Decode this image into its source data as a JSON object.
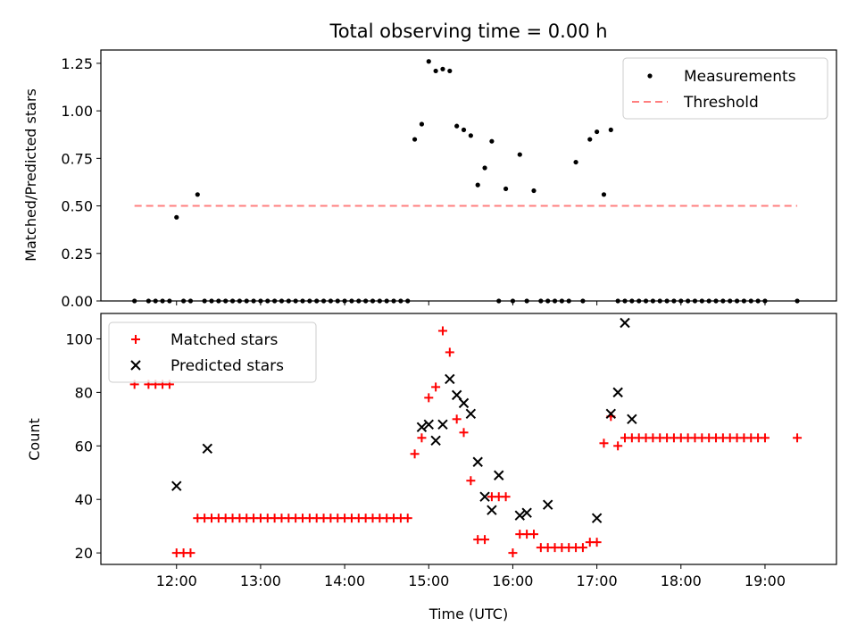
{
  "title": "Total observing time = 0.00 h",
  "colors": {
    "measure": "#000000",
    "threshold": "#ff7f7f",
    "matched": "#ff0000",
    "predicted": "#000000"
  },
  "chart_data": [
    {
      "type": "scatter",
      "ylabel": "Matched/Predicted stars",
      "ylim": [
        0,
        1.32
      ],
      "xlim": [
        "11:06",
        "19:51"
      ],
      "yticks": [
        "0.00",
        "0.25",
        "0.50",
        "0.75",
        "1.00",
        "1.25"
      ],
      "ytick_values": [
        0,
        0.25,
        0.5,
        0.75,
        1.0,
        1.25
      ],
      "legend": {
        "placement": "top-right",
        "entries": [
          "Measurements",
          "Threshold"
        ]
      },
      "series": [
        {
          "name": "Measurements",
          "marker": "dot",
          "x": [
            "11:30",
            "11:40",
            "11:45",
            "11:50",
            "11:55",
            "12:00",
            "12:05",
            "12:10",
            "12:15",
            "12:20",
            "12:25",
            "12:30",
            "12:35",
            "12:40",
            "12:45",
            "12:50",
            "12:55",
            "13:00",
            "13:05",
            "13:10",
            "13:15",
            "13:20",
            "13:25",
            "13:30",
            "13:35",
            "13:40",
            "13:45",
            "13:50",
            "13:55",
            "14:00",
            "14:05",
            "14:10",
            "14:15",
            "14:20",
            "14:25",
            "14:30",
            "14:35",
            "14:40",
            "14:45",
            "14:50",
            "14:55",
            "15:00",
            "15:05",
            "15:10",
            "15:15",
            "15:20",
            "15:25",
            "15:30",
            "15:35",
            "15:40",
            "15:45",
            "15:50",
            "15:55",
            "16:00",
            "16:05",
            "16:10",
            "16:15",
            "16:20",
            "16:25",
            "16:30",
            "16:35",
            "16:40",
            "16:45",
            "16:50",
            "16:55",
            "17:00",
            "17:05",
            "17:10",
            "17:15",
            "17:20",
            "17:25",
            "17:30",
            "17:35",
            "17:40",
            "17:45",
            "17:50",
            "17:55",
            "18:00",
            "18:05",
            "18:10",
            "18:15",
            "18:20",
            "18:25",
            "18:30",
            "18:35",
            "18:40",
            "18:45",
            "18:50",
            "18:55",
            "19:00",
            "19:23"
          ],
          "y": [
            0,
            0,
            0,
            0,
            0,
            0.44,
            0,
            0,
            0.56,
            0,
            0,
            0,
            0,
            0,
            0,
            0,
            0,
            0,
            0,
            0,
            0,
            0,
            0,
            0,
            0,
            0,
            0,
            0,
            0,
            0,
            0,
            0,
            0,
            0,
            0,
            0,
            0,
            0,
            0,
            0.85,
            0.93,
            1.26,
            1.21,
            1.22,
            1.21,
            0.92,
            0.9,
            0.87,
            0.61,
            0.7,
            0.84,
            0,
            0.59,
            0,
            0.77,
            0,
            0.58,
            0,
            0,
            0,
            0,
            0,
            0.73,
            0,
            0.85,
            0.89,
            0.56,
            0.9,
            0,
            0,
            0,
            0,
            0,
            0,
            0,
            0,
            0,
            0,
            0,
            0,
            0,
            0,
            0,
            0,
            0,
            0,
            0,
            0,
            0,
            0,
            0
          ]
        },
        {
          "name": "Threshold",
          "marker": "dashed-line",
          "x": [
            "11:30",
            "19:23"
          ],
          "y": [
            0.5,
            0.5
          ]
        }
      ]
    },
    {
      "type": "scatter",
      "ylabel": "Count",
      "xlabel": "Time (UTC)",
      "ylim": [
        15.7,
        109.5
      ],
      "xlim": [
        "11:06",
        "19:51"
      ],
      "xticks": [
        "12:00",
        "13:00",
        "14:00",
        "15:00",
        "16:00",
        "17:00",
        "18:00",
        "19:00"
      ],
      "yticks": [
        "20",
        "40",
        "60",
        "80",
        "100"
      ],
      "ytick_values": [
        20,
        40,
        60,
        80,
        100
      ],
      "legend": {
        "placement": "top-left",
        "entries": [
          "Matched stars",
          "Predicted stars"
        ]
      },
      "series": [
        {
          "name": "Matched stars",
          "marker": "plus",
          "x": [
            "11:30",
            "11:40",
            "11:45",
            "11:50",
            "11:55",
            "12:00",
            "12:05",
            "12:10",
            "12:15",
            "12:20",
            "12:25",
            "12:30",
            "12:35",
            "12:40",
            "12:45",
            "12:50",
            "12:55",
            "13:00",
            "13:05",
            "13:10",
            "13:15",
            "13:20",
            "13:25",
            "13:30",
            "13:35",
            "13:40",
            "13:45",
            "13:50",
            "13:55",
            "14:00",
            "14:05",
            "14:10",
            "14:15",
            "14:20",
            "14:25",
            "14:30",
            "14:35",
            "14:40",
            "14:45",
            "14:50",
            "14:55",
            "15:00",
            "15:05",
            "15:10",
            "15:15",
            "15:20",
            "15:25",
            "15:30",
            "15:35",
            "15:40",
            "15:45",
            "15:50",
            "15:55",
            "16:00",
            "16:05",
            "16:10",
            "16:15",
            "16:20",
            "16:25",
            "16:30",
            "16:35",
            "16:40",
            "16:45",
            "16:50",
            "16:55",
            "17:00",
            "17:05",
            "17:10",
            "17:15",
            "17:20",
            "17:25",
            "17:30",
            "17:35",
            "17:40",
            "17:45",
            "17:50",
            "17:55",
            "18:00",
            "18:05",
            "18:10",
            "18:15",
            "18:20",
            "18:25",
            "18:30",
            "18:35",
            "18:40",
            "18:45",
            "18:50",
            "18:55",
            "19:00",
            "19:23"
          ],
          "y": [
            83,
            83,
            83,
            83,
            83,
            20,
            20,
            20,
            33,
            33,
            33,
            33,
            33,
            33,
            33,
            33,
            33,
            33,
            33,
            33,
            33,
            33,
            33,
            33,
            33,
            33,
            33,
            33,
            33,
            33,
            33,
            33,
            33,
            33,
            33,
            33,
            33,
            33,
            33,
            57,
            63,
            78,
            82,
            103,
            95,
            70,
            65,
            47,
            25,
            25,
            41,
            41,
            41,
            20,
            27,
            27,
            27,
            22,
            22,
            22,
            22,
            22,
            22,
            22,
            24,
            24,
            61,
            71,
            60,
            63,
            63,
            63,
            63,
            63,
            63,
            63,
            63,
            63,
            63,
            63,
            63,
            63,
            63,
            63,
            63,
            63,
            63,
            63,
            63,
            63,
            63
          ]
        },
        {
          "name": "Predicted stars",
          "marker": "x",
          "x": [
            "12:00",
            "12:22",
            "14:55",
            "15:00",
            "15:05",
            "15:10",
            "15:15",
            "15:20",
            "15:25",
            "15:30",
            "15:35",
            "15:40",
            "15:45",
            "15:50",
            "16:05",
            "16:10",
            "16:25",
            "17:00",
            "17:10",
            "17:15",
            "17:20",
            "17:25"
          ],
          "y": [
            45,
            59,
            67,
            68,
            62,
            68,
            85,
            79,
            76,
            72,
            54,
            41,
            36,
            49,
            34,
            35,
            38,
            33,
            72,
            80,
            106,
            70
          ]
        }
      ]
    }
  ]
}
